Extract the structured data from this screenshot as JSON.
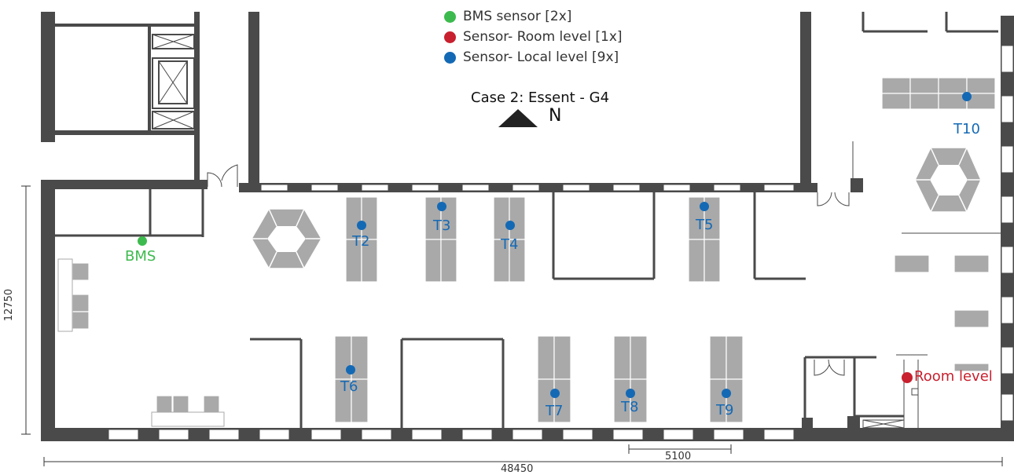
{
  "legend": {
    "items": [
      {
        "label": "BMS sensor [2x]",
        "color": "#3dba4e"
      },
      {
        "label": "Sensor- Room level [1x]",
        "color": "#c8202e"
      },
      {
        "label": "Sensor- Local level [9x]",
        "color": "#1469b5"
      }
    ]
  },
  "title": "Case 2: Essent - G4",
  "north_label": "N",
  "dimensions": {
    "total_width": "48450",
    "height": "12750",
    "segment": "5100"
  },
  "sensors": {
    "bms": "BMS",
    "room_level": "Room level",
    "t2": "T2",
    "t3": "T3",
    "t4": "T4",
    "t5": "T5",
    "t6": "T6",
    "t7": "T7",
    "t8": "T8",
    "t9": "T9",
    "t10": "T10"
  },
  "colors": {
    "wall": "#4a4a4a",
    "furniture": "#a9a9a9",
    "bms": "#3dba4e",
    "room": "#c8202e",
    "local": "#1469b5"
  }
}
